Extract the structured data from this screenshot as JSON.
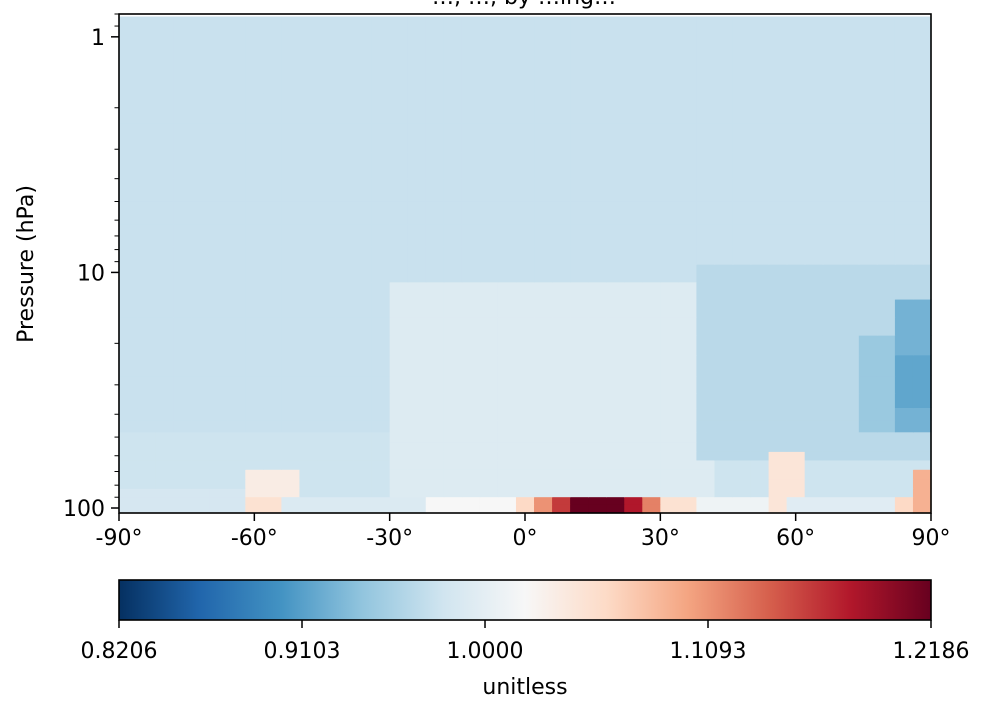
{
  "chart_data": {
    "type": "heatmap",
    "title": "…, …, by …ing…",
    "xlabel": "",
    "ylabel": "Pressure (hPa)",
    "xlim": [
      -90,
      90
    ],
    "ylim": [
      0.8,
      105
    ],
    "yscale": "log",
    "x_tick_values": [
      -90,
      -60,
      -30,
      0,
      30,
      60,
      90
    ],
    "x_tick_labels": [
      "-90°",
      "-60°",
      "-30°",
      "0°",
      "30°",
      "60°",
      "90°"
    ],
    "y_tick_values": [
      1,
      10,
      100
    ],
    "y_tick_labels": [
      "1",
      "10",
      "100"
    ],
    "grid": false,
    "colorbar": {
      "label": "unitless",
      "vmin": 0.8206,
      "vmax": 1.2186,
      "tick_values": [
        0.8206,
        0.9103,
        1.0,
        1.1093,
        1.2186
      ],
      "tick_labels": [
        "0.8206",
        "0.9103",
        "1.0000",
        "1.1093",
        "1.2186"
      ],
      "colormap": "RdBu_r",
      "colors": [
        "#053061",
        "#2166ac",
        "#4393c3",
        "#92c5de",
        "#d1e5f0",
        "#f7f7f7",
        "#fddbc7",
        "#f4a582",
        "#d6604d",
        "#b2182b",
        "#67001f"
      ]
    },
    "lat_edges_start": -90,
    "lat_step": 4,
    "lat_count": 45,
    "pressure_levels": [
      100,
      93,
      86,
      79,
      72,
      65,
      60,
      55,
      50,
      45,
      40,
      35,
      30,
      25,
      20,
      17,
      14,
      12,
      10,
      8.5,
      7,
      5.5,
      4.5,
      3.5,
      2.7,
      2,
      1.5,
      1.1
    ],
    "pressure_edges_top": 0.82,
    "pressure_edges_bottom": 105,
    "background_value": 0.978,
    "features": [
      {
        "lat": [
          -88,
          90
        ],
        "p": [
          45,
          1.0
        ],
        "value": 0.975
      },
      {
        "lat": [
          -30,
          40
        ],
        "p": [
          100,
          12
        ],
        "value": 0.992
      },
      {
        "lat": [
          40,
          88
        ],
        "p": [
          60,
          10
        ],
        "value": 0.965
      },
      {
        "lat": [
          76,
          90
        ],
        "p": [
          45,
          18
        ],
        "value": 0.945
      },
      {
        "lat": [
          84,
          90
        ],
        "p": [
          45,
          14
        ],
        "value": 0.925
      },
      {
        "lat": [
          84,
          90
        ],
        "p": [
          38,
          22
        ],
        "value": 0.915
      },
      {
        "lat": [
          -90,
          -60
        ],
        "p": [
          100,
          80
        ],
        "value": 0.985
      },
      {
        "lat": [
          -60,
          -52
        ],
        "p": [
          100,
          70
        ],
        "value": 1.035
      },
      {
        "lat": [
          -60,
          -52
        ],
        "p": [
          100,
          90
        ],
        "value": 1.05
      },
      {
        "lat": [
          -52,
          -20
        ],
        "p": [
          100,
          90
        ],
        "value": 0.99
      },
      {
        "lat": [
          -20,
          0
        ],
        "p": [
          100,
          90
        ],
        "value": 1.02
      },
      {
        "lat": [
          0,
          4
        ],
        "p": [
          100,
          90
        ],
        "value": 1.06
      },
      {
        "lat": [
          4,
          8
        ],
        "p": [
          100,
          90
        ],
        "value": 1.11
      },
      {
        "lat": [
          8,
          12
        ],
        "p": [
          100,
          90
        ],
        "value": 1.16
      },
      {
        "lat": [
          12,
          24
        ],
        "p": [
          100,
          90
        ],
        "value": 1.2186
      },
      {
        "lat": [
          24,
          28
        ],
        "p": [
          100,
          90
        ],
        "value": 1.18
      },
      {
        "lat": [
          28,
          32
        ],
        "p": [
          100,
          90
        ],
        "value": 1.12
      },
      {
        "lat": [
          32,
          40
        ],
        "p": [
          100,
          90
        ],
        "value": 1.05
      },
      {
        "lat": [
          40,
          52
        ],
        "p": [
          100,
          90
        ],
        "value": 1.01
      },
      {
        "lat": [
          56,
          60
        ],
        "p": [
          100,
          60
        ],
        "value": 1.045
      },
      {
        "lat": [
          60,
          84
        ],
        "p": [
          100,
          90
        ],
        "value": 0.995
      },
      {
        "lat": [
          84,
          88
        ],
        "p": [
          100,
          90
        ],
        "value": 1.06
      },
      {
        "lat": [
          88,
          90
        ],
        "p": [
          100,
          70
        ],
        "value": 1.09
      }
    ]
  }
}
